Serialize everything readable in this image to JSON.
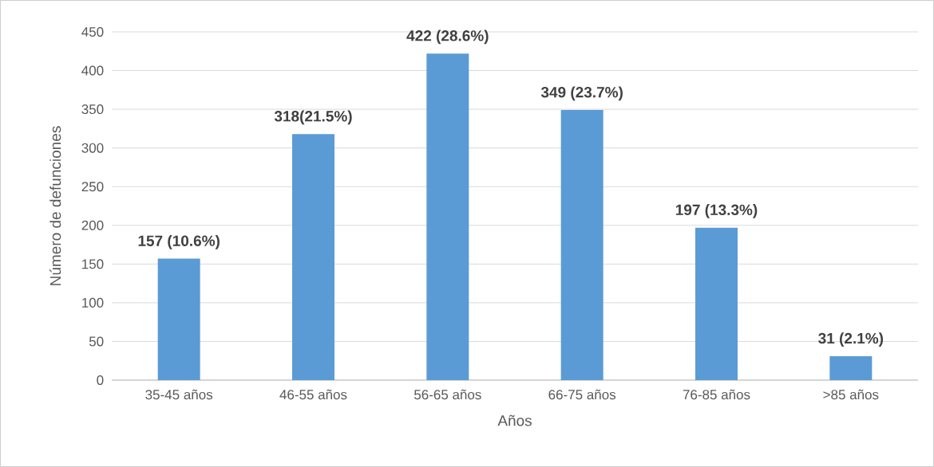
{
  "chart_data": {
    "type": "bar",
    "xlabel": "Años",
    "ylabel": "Número de defunciones",
    "categories": [
      "35-45 años",
      "46-55 años",
      "56-65 años",
      "66-75 años",
      "76-85 años",
      ">85 años"
    ],
    "values": [
      157,
      318,
      422,
      349,
      197,
      31
    ],
    "value_labels": [
      "157 (10.6%)",
      "318(21.5%)",
      "422 (28.6%)",
      "349 (23.7%)",
      "197 (13.3%)",
      "31 (2.1%)"
    ],
    "color": "#5b9bd5",
    "ylim": [
      0,
      450
    ],
    "yticks": [
      0,
      50,
      100,
      150,
      200,
      250,
      300,
      350,
      400,
      450
    ],
    "grid": "y"
  }
}
